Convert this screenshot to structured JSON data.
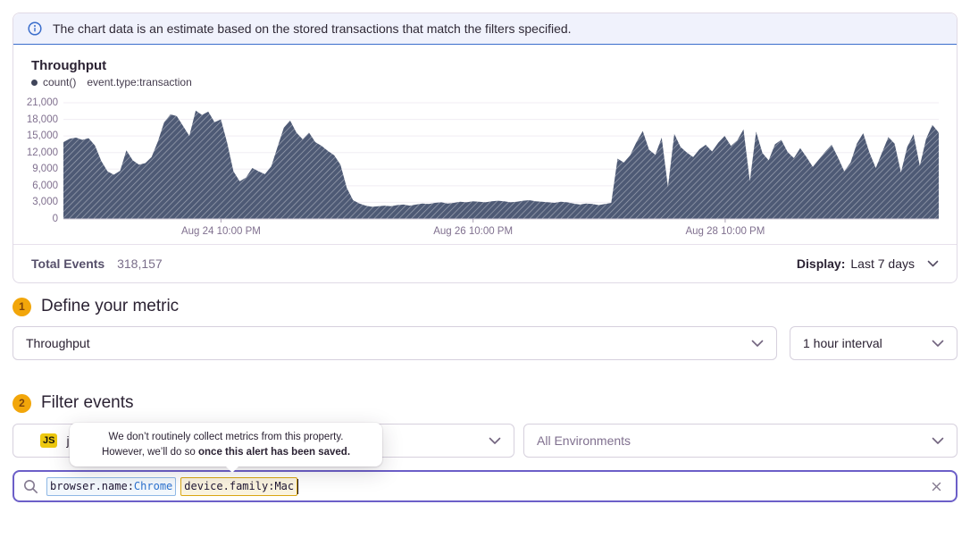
{
  "banner": {
    "text": "The chart data is an estimate based on the stored transactions that match the filters specified."
  },
  "chart_panel": {
    "title": "Throughput",
    "legend": {
      "series": "count()",
      "query": "event.type:transaction"
    },
    "footer": {
      "total_label": "Total Events",
      "total_value": "318,157",
      "display_label": "Display:",
      "display_value": "Last 7 days"
    }
  },
  "chart_data": {
    "type": "area",
    "title": "Throughput",
    "series_name": "count()",
    "series_filter": "event.type:transaction",
    "ylim": [
      0,
      21000
    ],
    "ytick_labels": [
      "0",
      "3,000",
      "6,000",
      "9,000",
      "12,000",
      "15,000",
      "18,000",
      "21,000"
    ],
    "xticks": [
      {
        "label": "Aug 24 10:00 PM",
        "pos": 0.18
      },
      {
        "label": "Aug 26 10:00 PM",
        "pos": 0.468
      },
      {
        "label": "Aug 28 10:00 PM",
        "pos": 0.756
      }
    ],
    "grid": true,
    "legend_position": "top-left",
    "area_color": "#4e5a75",
    "hatch_color": "rgba(255,255,255,0.45)",
    "values": [
      13900,
      14500,
      14700,
      14300,
      14600,
      13300,
      10500,
      8600,
      8000,
      8700,
      12400,
      10600,
      9800,
      10100,
      11200,
      14000,
      17500,
      18900,
      18600,
      16800,
      15000,
      19600,
      18800,
      19400,
      17500,
      18000,
      13800,
      8600,
      6800,
      7500,
      9200,
      8600,
      8100,
      9500,
      13000,
      16500,
      17800,
      15600,
      14400,
      15600,
      13900,
      13200,
      12300,
      11500,
      9800,
      5600,
      3400,
      2800,
      2400,
      2200,
      2300,
      2400,
      2300,
      2500,
      2600,
      2400,
      2600,
      2800,
      2700,
      2900,
      3000,
      2800,
      2900,
      3100,
      3000,
      3200,
      3100,
      3000,
      3200,
      3300,
      3200,
      3000,
      3100,
      3300,
      3400,
      3200,
      3100,
      3000,
      2900,
      3100,
      3000,
      2800,
      2600,
      2800,
      2700,
      2500,
      2700,
      2900,
      10900,
      10200,
      11500,
      13900,
      15900,
      12500,
      11600,
      14700,
      5800,
      15400,
      13000,
      12000,
      11200,
      12600,
      13400,
      12200,
      13800,
      15000,
      13200,
      14200,
      16200,
      6800,
      15800,
      11900,
      10600,
      13500,
      14300,
      12100,
      11000,
      12800,
      11200,
      9400,
      10800,
      12200,
      13400,
      11100,
      8600,
      10200,
      13600,
      15500,
      12000,
      9200,
      12000,
      14800,
      13600,
      8400,
      13000,
      15300,
      9600,
      14500,
      17000,
      15600
    ]
  },
  "sections": {
    "define_metric": {
      "step": "1",
      "title": "Define your metric",
      "metric_select": "Throughput",
      "interval_select": "1 hour interval"
    },
    "filter_events": {
      "step": "2",
      "title": "Filter events",
      "project_badge": "JS",
      "project_name": "j",
      "environment_select": "All Environments"
    }
  },
  "tooltip": {
    "line1": "We don’t routinely collect metrics from this property.",
    "line2_regular": "However, we’ll do so ",
    "line2_bold": "once this alert has been saved."
  },
  "search": {
    "tokens": [
      {
        "key": "browser.name:",
        "value": "Chrome"
      },
      {
        "key": "device.family:",
        "value": "Mac"
      }
    ]
  },
  "colors": {
    "accent_purple": "#6c5fc8",
    "banner_blue": "#3b6ecc",
    "banner_bg": "#f0f2fc",
    "step_badge_bg": "#f2a60a",
    "chart_fill": "#4e5a75",
    "token_filter_border": "#8fb8e6",
    "token_warning_border": "#d9a613",
    "axis_text": "#80708f"
  }
}
